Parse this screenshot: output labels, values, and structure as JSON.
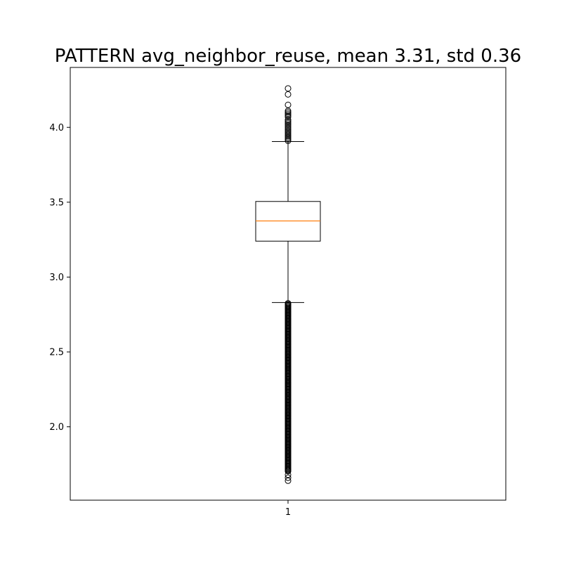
{
  "chart_data": {
    "type": "box",
    "title": "PATTERN avg_neighbor_reuse, mean 3.31, std 0.36",
    "xlabel": "",
    "ylabel": "",
    "categories": [
      "1"
    ],
    "y_ticks": [
      2.0,
      2.5,
      3.0,
      3.5,
      4.0
    ],
    "y_tick_labels": [
      "2.0",
      "2.5",
      "3.0",
      "3.5",
      "4.0"
    ],
    "ylim": [
      1.51,
      4.4
    ],
    "grid": false,
    "legend": "none",
    "box": {
      "category": "1",
      "whisker_low": 2.83,
      "q1": 3.24,
      "median": 3.375,
      "q3": 3.505,
      "whisker_high": 3.905
    },
    "outliers_high": [
      4.26,
      4.22,
      4.15,
      4.11,
      4.1,
      4.09,
      4.08,
      4.07,
      4.05,
      4.04,
      4.03,
      4.02,
      4.01,
      4.0,
      3.99,
      3.98,
      3.97,
      3.96,
      3.95,
      3.94,
      3.93,
      3.92,
      3.91
    ],
    "outliers_low_dense_range": [
      1.7,
      2.825
    ],
    "outliers_low_extra": [
      1.68,
      1.66,
      1.64
    ],
    "colors": {
      "median": "#ff7f0e",
      "box": "#000000"
    }
  }
}
